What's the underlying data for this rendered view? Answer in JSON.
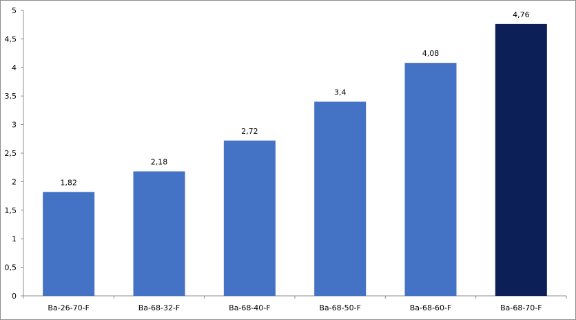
{
  "chart_data": {
    "type": "bar",
    "title": "",
    "xlabel": "",
    "ylabel": "",
    "categories": [
      "Ba-26-70-F",
      "Ba-68-32-F",
      "Ba-68-40-F",
      "Ba-68-50-F",
      "Ba-68-60-F",
      "Ba-68-70-F"
    ],
    "values": [
      1.82,
      2.18,
      2.72,
      3.4,
      4.08,
      4.76
    ],
    "value_labels": [
      "1,82",
      "2,18",
      "2,72",
      "3,4",
      "4,08",
      "4,76"
    ],
    "ylim": [
      0,
      5
    ],
    "yticks": [
      "0",
      "0,5",
      "1",
      "1,5",
      "2",
      "2,5",
      "3",
      "3,5",
      "4",
      "4,5",
      "5"
    ],
    "grid": false,
    "legend": "none",
    "colors": {
      "bar": "#4472c4",
      "highlight_bar": "#0d1f57",
      "axis": "#8c8c8c"
    },
    "highlight_index": 5
  }
}
